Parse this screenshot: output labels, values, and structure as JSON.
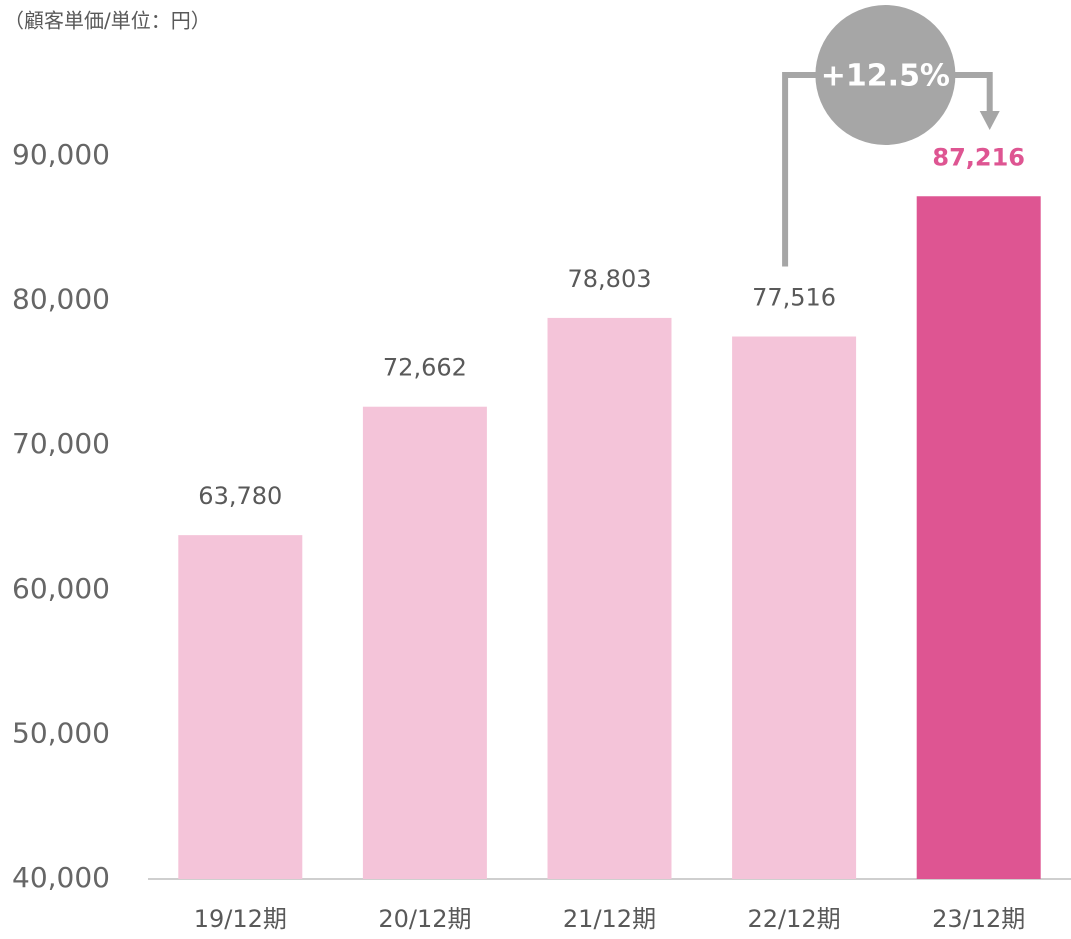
{
  "chart_data": {
    "type": "bar",
    "unit_label": "（顧客単価/単位：円）",
    "categories": [
      "19/12期",
      "20/12期",
      "21/12期",
      "22/12期",
      "23/12期"
    ],
    "values": [
      63780,
      72662,
      78803,
      77516,
      87216
    ],
    "value_labels": [
      "63,780",
      "72,662",
      "78,803",
      "77,516",
      "87,216"
    ],
    "colors": [
      "#f4c4d9",
      "#f4c4d9",
      "#f4c4d9",
      "#f4c4d9",
      "#de5592"
    ],
    "value_label_colors": [
      "#595959",
      "#595959",
      "#595959",
      "#595959",
      "#de5592"
    ],
    "ylim": [
      40000,
      90000
    ],
    "yticks": [
      {
        "value": 40000,
        "label": "40,000"
      },
      {
        "value": 50000,
        "label": "50,000"
      },
      {
        "value": 60000,
        "label": "60,000"
      },
      {
        "value": 70000,
        "label": "70,000"
      },
      {
        "value": 80000,
        "label": "80,000"
      },
      {
        "value": 90000,
        "label": "90,000"
      }
    ],
    "annotation": "+12.5%",
    "grid": false
  }
}
